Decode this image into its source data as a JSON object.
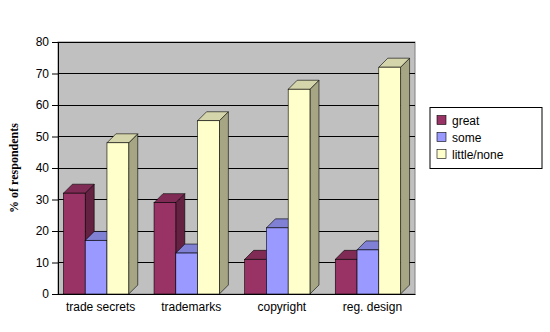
{
  "chart_data": {
    "type": "bar",
    "y_label": "% of respondents",
    "categories": [
      "trade secrets",
      "trademarks",
      "copyright",
      "reg. design"
    ],
    "series": [
      {
        "name": "great",
        "color": "#993366",
        "values": [
          32,
          29,
          11,
          11
        ]
      },
      {
        "name": "some",
        "color": "#9999ff",
        "values": [
          17,
          13,
          21,
          14
        ]
      },
      {
        "name": "little/none",
        "color": "#ffffcc",
        "values": [
          48,
          55,
          65,
          72
        ]
      }
    ],
    "ylim": [
      0,
      80
    ],
    "yticks": [
      0,
      10,
      20,
      30,
      40,
      50,
      60,
      70,
      80
    ],
    "grid": true,
    "legend": "right"
  }
}
